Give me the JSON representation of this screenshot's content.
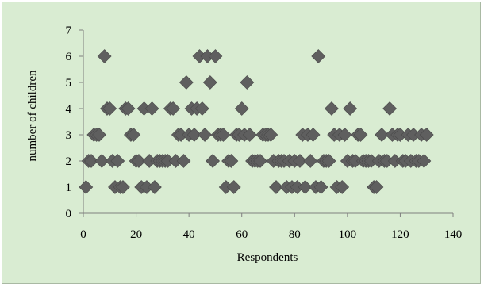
{
  "chart_data": {
    "type": "scatter",
    "title": "",
    "xlabel": "Respondents",
    "ylabel": "number of children",
    "xlim": [
      0,
      140
    ],
    "ylim": [
      0,
      7
    ],
    "xticks": [
      0,
      20,
      40,
      60,
      80,
      100,
      120,
      140
    ],
    "yticks": [
      0,
      1,
      2,
      3,
      4,
      5,
      6,
      7
    ],
    "grid": false,
    "legend": "none",
    "marker": "diamond",
    "marker_color": "#5f5f5f",
    "series": [
      {
        "points": [
          [
            1,
            1
          ],
          [
            2,
            2
          ],
          [
            3,
            2
          ],
          [
            4,
            3
          ],
          [
            5,
            3
          ],
          [
            6,
            3
          ],
          [
            7,
            2
          ],
          [
            8,
            6
          ],
          [
            9,
            4
          ],
          [
            10,
            4
          ],
          [
            11,
            2
          ],
          [
            12,
            1
          ],
          [
            13,
            2
          ],
          [
            14,
            1
          ],
          [
            15,
            1
          ],
          [
            16,
            4
          ],
          [
            17,
            4
          ],
          [
            18,
            3
          ],
          [
            19,
            3
          ],
          [
            20,
            2
          ],
          [
            21,
            2
          ],
          [
            22,
            1
          ],
          [
            23,
            4
          ],
          [
            24,
            1
          ],
          [
            25,
            2
          ],
          [
            26,
            4
          ],
          [
            27,
            1
          ],
          [
            28,
            2
          ],
          [
            29,
            2
          ],
          [
            30,
            2
          ],
          [
            31,
            2
          ],
          [
            32,
            2
          ],
          [
            33,
            4
          ],
          [
            34,
            4
          ],
          [
            35,
            2
          ],
          [
            36,
            3
          ],
          [
            37,
            3
          ],
          [
            38,
            2
          ],
          [
            39,
            5
          ],
          [
            40,
            3
          ],
          [
            41,
            4
          ],
          [
            42,
            3
          ],
          [
            43,
            4
          ],
          [
            44,
            6
          ],
          [
            45,
            4
          ],
          [
            46,
            3
          ],
          [
            47,
            6
          ],
          [
            48,
            5
          ],
          [
            49,
            2
          ],
          [
            50,
            6
          ],
          [
            51,
            3
          ],
          [
            52,
            3
          ],
          [
            53,
            3
          ],
          [
            54,
            1
          ],
          [
            55,
            2
          ],
          [
            56,
            2
          ],
          [
            57,
            1
          ],
          [
            58,
            3
          ],
          [
            59,
            3
          ],
          [
            60,
            4
          ],
          [
            61,
            3
          ],
          [
            62,
            5
          ],
          [
            63,
            3
          ],
          [
            64,
            2
          ],
          [
            65,
            2
          ],
          [
            66,
            2
          ],
          [
            67,
            2
          ],
          [
            68,
            3
          ],
          [
            69,
            3
          ],
          [
            70,
            3
          ],
          [
            71,
            3
          ],
          [
            72,
            2
          ],
          [
            73,
            1
          ],
          [
            74,
            2
          ],
          [
            75,
            2
          ],
          [
            76,
            2
          ],
          [
            77,
            1
          ],
          [
            78,
            2
          ],
          [
            79,
            1
          ],
          [
            80,
            2
          ],
          [
            81,
            1
          ],
          [
            82,
            2
          ],
          [
            83,
            3
          ],
          [
            84,
            1
          ],
          [
            85,
            3
          ],
          [
            86,
            2
          ],
          [
            87,
            3
          ],
          [
            88,
            1
          ],
          [
            89,
            6
          ],
          [
            90,
            1
          ],
          [
            91,
            2
          ],
          [
            92,
            2
          ],
          [
            93,
            2
          ],
          [
            94,
            4
          ],
          [
            95,
            3
          ],
          [
            96,
            1
          ],
          [
            97,
            3
          ],
          [
            98,
            1
          ],
          [
            99,
            3
          ],
          [
            100,
            2
          ],
          [
            101,
            4
          ],
          [
            102,
            2
          ],
          [
            103,
            2
          ],
          [
            104,
            3
          ],
          [
            105,
            3
          ],
          [
            106,
            2
          ],
          [
            107,
            2
          ],
          [
            108,
            2
          ],
          [
            109,
            2
          ],
          [
            110,
            1
          ],
          [
            111,
            1
          ],
          [
            112,
            2
          ],
          [
            113,
            3
          ],
          [
            114,
            2
          ],
          [
            115,
            2
          ],
          [
            116,
            4
          ],
          [
            117,
            3
          ],
          [
            118,
            2
          ],
          [
            119,
            3
          ],
          [
            120,
            3
          ],
          [
            121,
            2
          ],
          [
            122,
            2
          ],
          [
            123,
            3
          ],
          [
            124,
            2
          ],
          [
            125,
            3
          ],
          [
            126,
            2
          ],
          [
            127,
            2
          ],
          [
            128,
            3
          ],
          [
            129,
            2
          ],
          [
            130,
            3
          ]
        ]
      }
    ]
  }
}
